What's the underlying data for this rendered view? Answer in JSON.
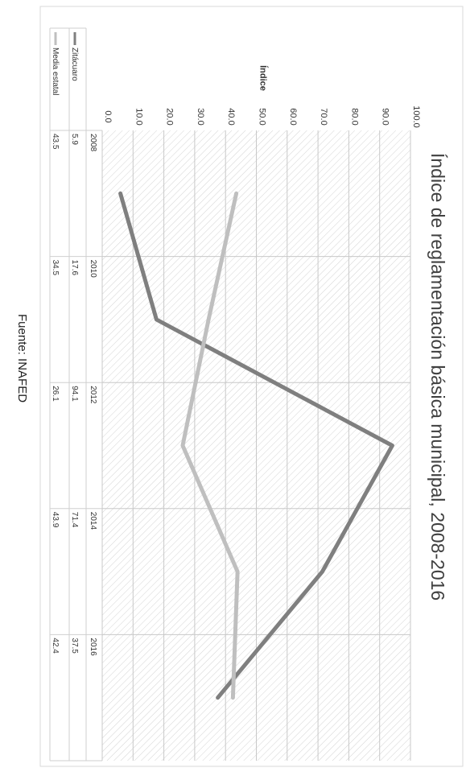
{
  "source": "Fuente: INAFED",
  "chart_data": {
    "type": "line",
    "title": "Índice de reglamentación básica municipal, 2008-2016",
    "ylabel": "Índice",
    "xlabel": "",
    "categories": [
      "2008",
      "2010",
      "2012",
      "2014",
      "2016"
    ],
    "ylim": [
      0,
      100
    ],
    "yticks": [
      "0.0",
      "10.0",
      "20.0",
      "30.0",
      "40.0",
      "50.0",
      "60.0",
      "70.0",
      "80.0",
      "90.0",
      "100.0"
    ],
    "grid": true,
    "legend": "data-table",
    "series": [
      {
        "name": "Zitácuaro",
        "values": [
          5.9,
          17.6,
          94.1,
          71.4,
          37.5
        ],
        "value_labels": [
          "5.9",
          "17.6",
          "94.1",
          "71.4",
          "37.5"
        ],
        "color": "#7f7f7f"
      },
      {
        "name": "Media estatal",
        "values": [
          43.5,
          34.5,
          26.1,
          43.9,
          42.4
        ],
        "value_labels": [
          "43.5",
          "34.5",
          "26.1",
          "43.9",
          "42.4"
        ],
        "color": "#bfbfbf"
      }
    ]
  }
}
